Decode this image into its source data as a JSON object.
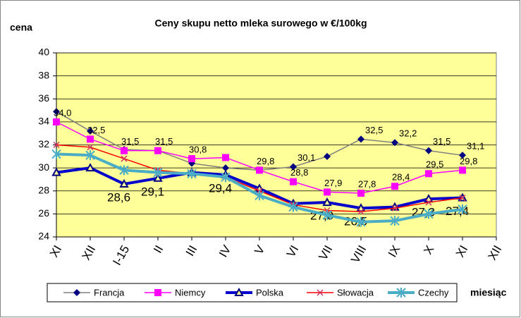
{
  "chart_data": {
    "type": "line",
    "title": "Ceny skupu netto mleka surowego  w €/100kg",
    "y_label": "cena",
    "x_label": "miesiąc",
    "categories": [
      "XI",
      "XII",
      "I-15",
      "II",
      "III",
      "IV",
      "V",
      "VI",
      "VII",
      "VIII",
      "IX",
      "X",
      "XI",
      "XII"
    ],
    "ylim": [
      24,
      40
    ],
    "yticks": [
      24,
      26,
      28,
      30,
      32,
      34,
      36,
      38,
      40
    ],
    "grid": true,
    "series": [
      {
        "name": "Francja",
        "color": "#808080",
        "marker_color": "#000080",
        "marker": "diamond",
        "values": [
          34.9,
          33.2,
          31.6,
          31.5,
          30.4,
          30.0,
          29.8,
          30.1,
          31.0,
          32.5,
          32.2,
          31.5,
          31.1,
          null
        ],
        "value_labels": [
          null,
          null,
          null,
          null,
          null,
          null,
          null,
          "30,1",
          null,
          "32,5",
          "32,2",
          "31,5",
          "31,1",
          null
        ]
      },
      {
        "name": "Niemcy",
        "color": "#ff00ff",
        "marker_color": "#ff00ff",
        "marker": "square",
        "values": [
          34.0,
          32.5,
          31.5,
          31.5,
          30.8,
          30.9,
          29.8,
          28.8,
          27.9,
          27.8,
          28.4,
          29.5,
          29.8,
          null
        ],
        "value_labels": [
          "34,0",
          "32,5",
          "31,5",
          "31,5",
          "30,8",
          null,
          "29,8",
          "28,8",
          "27,9",
          "27,8",
          "28,4",
          "29,5",
          "29,8",
          null
        ]
      },
      {
        "name": "Polska",
        "color": "#0000cc",
        "marker_color": "#000080",
        "marker": "triangle",
        "values": [
          29.6,
          30.0,
          28.6,
          29.1,
          29.6,
          29.4,
          28.2,
          26.9,
          27.0,
          26.5,
          26.6,
          27.3,
          27.4,
          null
        ],
        "value_labels": [
          null,
          null,
          "28,6",
          "29,1",
          null,
          "29,4",
          null,
          null,
          "27,0",
          "26,5",
          null,
          "27,3",
          "27,4",
          null
        ]
      },
      {
        "name": "Słowacja",
        "color": "#ff0000",
        "marker_color": "#cc3366",
        "marker": "star",
        "values": [
          32.0,
          31.8,
          30.8,
          29.8,
          29.5,
          29.2,
          28.0,
          26.8,
          26.3,
          26.2,
          26.5,
          27.0,
          27.4,
          null
        ]
      },
      {
        "name": "Czechy",
        "color": "#4bacc6",
        "marker_color": "#4bacc6",
        "marker": "asterisk",
        "values": [
          31.2,
          31.1,
          29.8,
          29.6,
          29.5,
          29.2,
          27.6,
          26.6,
          25.9,
          25.3,
          25.4,
          26.0,
          26.4,
          null
        ]
      }
    ]
  }
}
